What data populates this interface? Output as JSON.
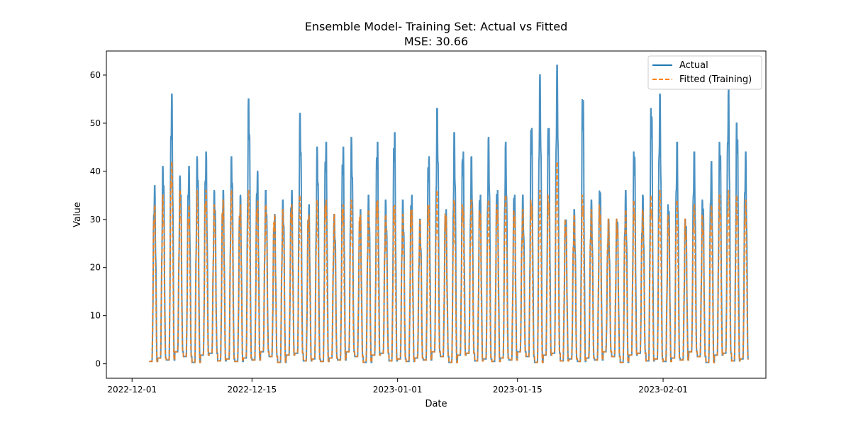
{
  "chart_data": {
    "type": "line",
    "title": "Ensemble Model- Training Set: Actual vs Fitted",
    "subtitle": "MSE: 30.66",
    "xlabel": "Date",
    "ylabel": "Value",
    "xlim": [
      "2022-11-28",
      "2023-02-13"
    ],
    "ylim": [
      -3,
      65
    ],
    "x_ticks": [
      "2022-12-01",
      "2022-12-15",
      "2023-01-01",
      "2023-01-15",
      "2023-02-01"
    ],
    "y_ticks": [
      0,
      10,
      20,
      30,
      40,
      50,
      60
    ],
    "legend_position": "top-right",
    "x_start": "2022-12-03",
    "x_end": "2023-02-09",
    "sampling": "hourly",
    "series": [
      {
        "name": "Actual",
        "color": "#1f77b4",
        "style": "solid",
        "daily_peaks": [
          37,
          41,
          56,
          39,
          41,
          43,
          44,
          36,
          36,
          43,
          35,
          55,
          40,
          36,
          31,
          34,
          36,
          52,
          33,
          45,
          46,
          31,
          45,
          47,
          32,
          35,
          46,
          34,
          48,
          34,
          35,
          30,
          43,
          53,
          32,
          48,
          44,
          43,
          35,
          47,
          36,
          46,
          35,
          35,
          49,
          60,
          49,
          62,
          30,
          32,
          55,
          34,
          36,
          30,
          30,
          36,
          44,
          35,
          53,
          56,
          33,
          46,
          30,
          44,
          34,
          42,
          46,
          57,
          50,
          44
        ]
      },
      {
        "name": "Fitted (Training)",
        "color": "#ff7f0e",
        "style": "dashed",
        "daily_peaks": [
          33,
          35,
          42,
          36,
          33,
          36,
          36,
          33,
          34,
          36,
          33,
          36,
          34,
          33,
          31,
          32,
          33,
          35,
          31,
          34,
          34,
          31,
          33,
          34,
          31,
          32,
          34,
          31,
          33,
          31,
          32,
          30,
          33,
          36,
          31,
          34,
          33,
          34,
          32,
          34,
          33,
          35,
          32,
          32,
          34,
          36,
          35,
          42,
          30,
          31,
          35,
          32,
          33,
          30,
          30,
          32,
          34,
          32,
          35,
          36,
          31,
          34,
          30,
          33,
          31,
          33,
          35,
          36,
          35,
          34
        ]
      }
    ]
  }
}
